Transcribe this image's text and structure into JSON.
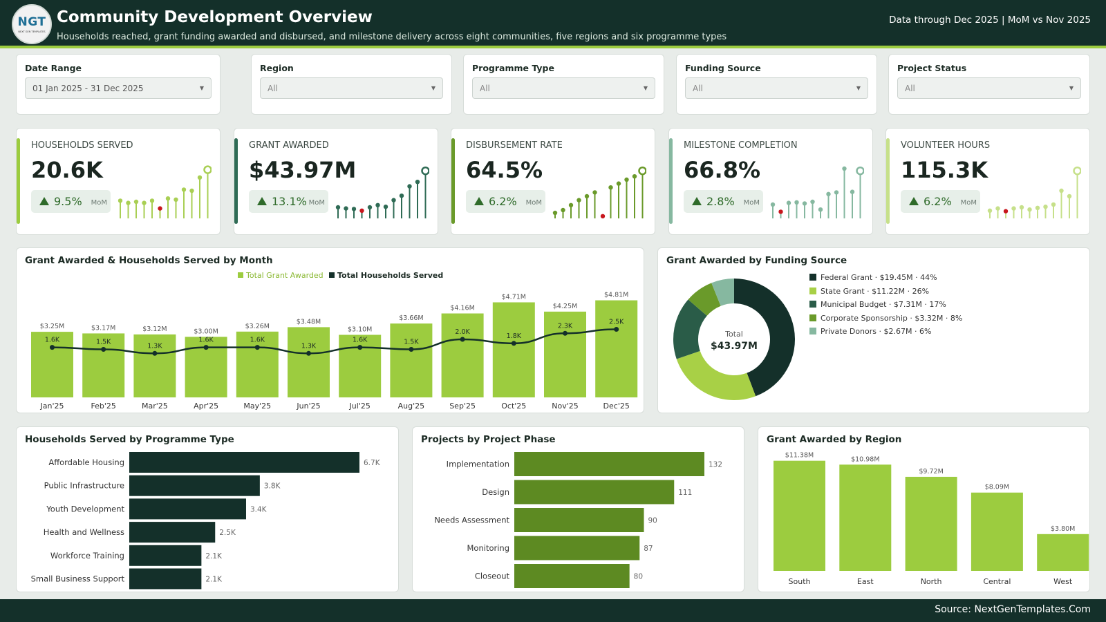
{
  "header": {
    "logo_text": "NGT",
    "logo_subtext": "NEXT GEN TEMPLATES",
    "title": "Community Development Overview",
    "subtitle": "Households reached, grant funding awarded and disbursed, and milestone delivery across eight communities, five regions and six programme types",
    "data_through": "Data through Dec 2025 | MoM vs Nov 2025"
  },
  "filters": [
    {
      "label": "Date Range",
      "value": "01 Jan 2025 - 31 Dec 2025"
    },
    {
      "label": "Region",
      "value": "All"
    },
    {
      "label": "Programme Type",
      "value": "All"
    },
    {
      "label": "Funding Source",
      "value": "All"
    },
    {
      "label": "Project Status",
      "value": "All"
    }
  ],
  "kpis": [
    {
      "label": "HOUSEHOLDS SERVED",
      "value": "20.6K",
      "delta": "9.5%",
      "delta_note": "MoM",
      "accent": "#9ccc3f",
      "spark_color": "#a9cf54",
      "spark": [
        0.32,
        0.28,
        0.3,
        0.28,
        0.32,
        0.18,
        0.36,
        0.34,
        0.52,
        0.5,
        0.74,
        0.88
      ],
      "spark_low_index": 5
    },
    {
      "label": "GRANT AWARDED",
      "value": "$43.97M",
      "delta": "13.1%",
      "delta_note": "MoM",
      "accent": "#2f6b55",
      "spark_color": "#2f6b55",
      "spark": [
        0.2,
        0.18,
        0.17,
        0.14,
        0.2,
        0.24,
        0.21,
        0.33,
        0.41,
        0.58,
        0.66,
        0.86
      ],
      "spark_low_index": 3
    },
    {
      "label": "DISBURSEMENT RATE",
      "value": "64.5%",
      "delta": "6.2%",
      "delta_note": "MoM",
      "accent": "#6a9a2a",
      "spark_color": "#6a9a2a",
      "spark": [
        0.1,
        0.15,
        0.24,
        0.33,
        0.4,
        0.47,
        0.04,
        0.56,
        0.63,
        0.7,
        0.76,
        0.86
      ],
      "spark_low_index": 6
    },
    {
      "label": "MILESTONE COMPLETION",
      "value": "66.8%",
      "delta": "2.8%",
      "delta_note": "MoM",
      "accent": "#86b8a0",
      "spark_color": "#86b8a0",
      "spark": [
        0.25,
        0.12,
        0.28,
        0.29,
        0.27,
        0.3,
        0.16,
        0.44,
        0.47,
        0.9,
        0.48,
        0.86
      ],
      "spark_low_index": 1
    },
    {
      "label": "VOLUNTEER HOURS",
      "value": "115.3K",
      "delta": "6.2%",
      "delta_note": "MoM",
      "accent": "#c6e08a",
      "spark_color": "#c6e08a",
      "spark": [
        0.14,
        0.18,
        0.13,
        0.18,
        0.2,
        0.16,
        0.19,
        0.21,
        0.25,
        0.5,
        0.4,
        0.86
      ],
      "spark_low_index": 2
    }
  ],
  "chart_data": [
    {
      "type": "bar",
      "title": "Grant Awarded & Households Served by Month",
      "categories": [
        "Jan'25",
        "Feb'25",
        "Mar'25",
        "Apr'25",
        "May'25",
        "Jun'25",
        "Jul'25",
        "Aug'25",
        "Sep'25",
        "Oct'25",
        "Nov'25",
        "Dec'25"
      ],
      "series": [
        {
          "name": "Total Grant Awarded",
          "type": "bar",
          "color": "#9ccc3f",
          "values": [
            3.25,
            3.17,
            3.12,
            3.0,
            3.26,
            3.48,
            3.1,
            3.66,
            4.16,
            4.71,
            4.25,
            4.81
          ],
          "labels": [
            "$3.25M",
            "$3.17M",
            "$3.12M",
            "$3.00M",
            "$3.26M",
            "$3.48M",
            "$3.10M",
            "$3.66M",
            "$4.16M",
            "$4.71M",
            "$4.25M",
            "$4.81M"
          ]
        },
        {
          "name": "Total Households Served",
          "type": "line",
          "color": "#14302a",
          "values": [
            1.6,
            1.5,
            1.3,
            1.6,
            1.6,
            1.3,
            1.6,
            1.5,
            2.0,
            1.8,
            2.3,
            2.5
          ],
          "labels": [
            "1.6K",
            "1.5K",
            "1.3K",
            "1.6K",
            "1.6K",
            "1.3K",
            "1.6K",
            "1.5K",
            "2.0K",
            "1.8K",
            "2.3K",
            "2.5K"
          ]
        }
      ]
    },
    {
      "type": "pie",
      "title": "Grant Awarded by Funding Source",
      "center_label": "Total",
      "center_value": "$43.97M",
      "slices": [
        {
          "name": "Federal Grant",
          "value": 19.45,
          "label": "Federal Grant · $19.45M · 44%",
          "color": "#14302a"
        },
        {
          "name": "State Grant",
          "value": 11.22,
          "label": "State Grant · $11.22M · 26%",
          "color": "#a8d046"
        },
        {
          "name": "Municipal Budget",
          "value": 7.31,
          "label": "Municipal Budget · $7.31M · 17%",
          "color": "#2a5c48"
        },
        {
          "name": "Corporate Sponsorship",
          "value": 3.32,
          "label": "Corporate Sponsorship · $3.32M · 8%",
          "color": "#6a9a2a"
        },
        {
          "name": "Private Donors",
          "value": 2.67,
          "label": "Private Donors · $2.67M · 6%",
          "color": "#86b8a0"
        }
      ]
    },
    {
      "type": "bar",
      "orientation": "horizontal",
      "title": "Households Served by Programme Type",
      "color": "#14302a",
      "categories": [
        "Affordable Housing",
        "Public Infrastructure",
        "Youth Development",
        "Health and Wellness",
        "Workforce Training",
        "Small Business Support"
      ],
      "values": [
        6.7,
        3.8,
        3.4,
        2.5,
        2.1,
        2.1
      ],
      "labels": [
        "6.7K",
        "3.8K",
        "3.4K",
        "2.5K",
        "2.1K",
        "2.1K"
      ]
    },
    {
      "type": "bar",
      "orientation": "horizontal",
      "title": "Projects by Project Phase",
      "color": "#5d8a22",
      "categories": [
        "Implementation",
        "Design",
        "Needs Assessment",
        "Monitoring",
        "Closeout"
      ],
      "values": [
        132,
        111,
        90,
        87,
        80
      ],
      "labels": [
        "132",
        "111",
        "90",
        "87",
        "80"
      ]
    },
    {
      "type": "bar",
      "title": "Grant Awarded by Region",
      "color": "#9ccc3f",
      "categories": [
        "South",
        "East",
        "North",
        "Central",
        "West"
      ],
      "values": [
        11.38,
        10.98,
        9.72,
        8.09,
        3.8
      ],
      "labels": [
        "$11.38M",
        "$10.98M",
        "$9.72M",
        "$8.09M",
        "$3.80M"
      ]
    }
  ],
  "footer": {
    "source": "Source: NextGenTemplates.Com"
  }
}
